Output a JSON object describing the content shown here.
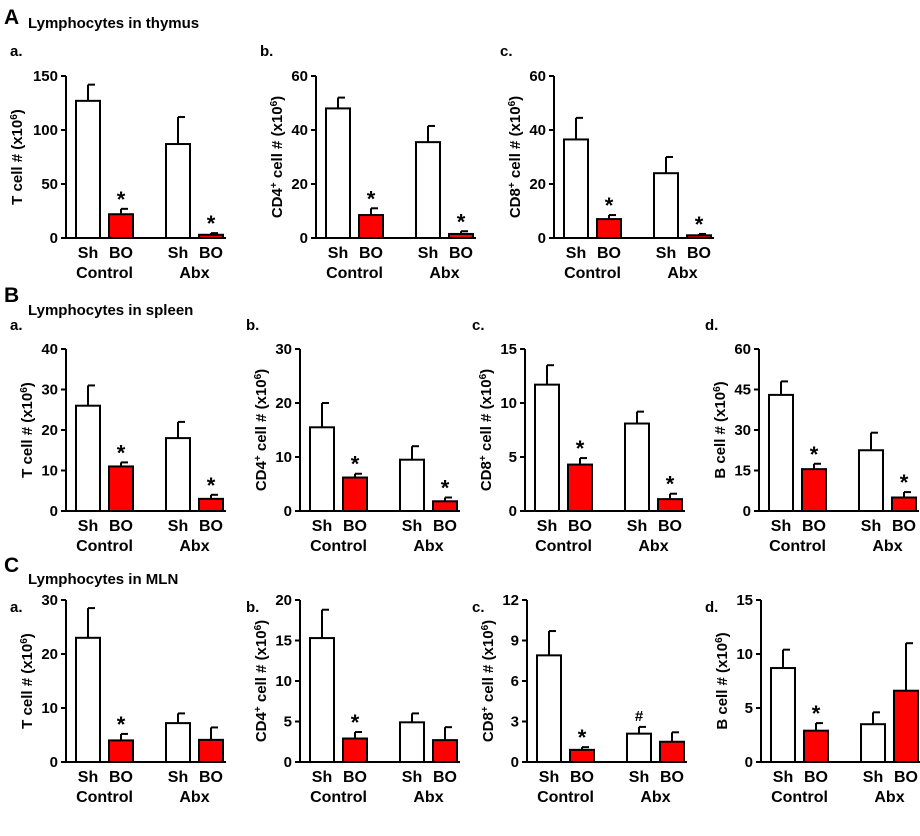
{
  "sections": [
    {
      "id": "A",
      "letter": "A",
      "title": "Lymphocytes in thymus"
    },
    {
      "id": "B",
      "letter": "B",
      "title": "Lymphocytes in spleen"
    },
    {
      "id": "C",
      "letter": "C",
      "title": "Lymphocytes in MLN"
    }
  ],
  "colors": {
    "sham": "#ffffff",
    "bo": "#ff0000",
    "stroke": "#000000"
  },
  "chart_data": [
    {
      "type": "bar",
      "section": "A",
      "panel": "a.",
      "ylabel": "T cell # (x10",
      "ylabel_sup": "6",
      "ylabel_end": ")",
      "yticks": [
        0,
        50,
        100,
        150
      ],
      "ylim": [
        0,
        150
      ],
      "categories": [
        "Sh",
        "BO",
        "Sh",
        "BO"
      ],
      "groups": [
        "Control",
        "Abx"
      ],
      "values": [
        127,
        22,
        87,
        3
      ],
      "errors": [
        15,
        5,
        25,
        1.5
      ],
      "marks": [
        "",
        "*",
        "",
        "*"
      ]
    },
    {
      "type": "bar",
      "section": "A",
      "panel": "b.",
      "ylabel": "CD4",
      "ylabel_sup2": "+",
      "ylabel_mid": " cell # (x10",
      "ylabel_sup": "6",
      "ylabel_end": ")",
      "yticks": [
        0,
        20,
        40,
        60
      ],
      "ylim": [
        0,
        60
      ],
      "categories": [
        "Sh",
        "BO",
        "Sh",
        "BO"
      ],
      "groups": [
        "Control",
        "Abx"
      ],
      "values": [
        48,
        8.5,
        35.5,
        1.5
      ],
      "errors": [
        4,
        2.5,
        6,
        1
      ],
      "marks": [
        "",
        "*",
        "",
        "*"
      ]
    },
    {
      "type": "bar",
      "section": "A",
      "panel": "c.",
      "ylabel": "CD8",
      "ylabel_sup2": "+",
      "ylabel_mid": " cell # (x10",
      "ylabel_sup": "6",
      "ylabel_end": ")",
      "yticks": [
        0,
        20,
        40,
        60
      ],
      "ylim": [
        0,
        60
      ],
      "categories": [
        "Sh",
        "BO",
        "Sh",
        "BO"
      ],
      "groups": [
        "Control",
        "Abx"
      ],
      "values": [
        36.5,
        7,
        24,
        1
      ],
      "errors": [
        8,
        1.5,
        6,
        0.5
      ],
      "marks": [
        "",
        "*",
        "",
        "*"
      ]
    },
    {
      "type": "bar",
      "section": "B",
      "panel": "a.",
      "ylabel": "T cell # (x10",
      "ylabel_sup": "6",
      "ylabel_end": ")",
      "yticks": [
        0,
        10,
        20,
        30,
        40
      ],
      "ylim": [
        0,
        40
      ],
      "categories": [
        "Sh",
        "BO",
        "Sh",
        "BO"
      ],
      "groups": [
        "Control",
        "Abx"
      ],
      "values": [
        26,
        11,
        18,
        3
      ],
      "errors": [
        5,
        1,
        4,
        1
      ],
      "marks": [
        "",
        "*",
        "",
        "*"
      ]
    },
    {
      "type": "bar",
      "section": "B",
      "panel": "b.",
      "ylabel": "CD4",
      "ylabel_sup2": "+",
      "ylabel_mid": " cell # (x10",
      "ylabel_sup": "6",
      "ylabel_end": ")",
      "yticks": [
        0,
        10,
        20,
        30
      ],
      "ylim": [
        0,
        30
      ],
      "categories": [
        "Sh",
        "BO",
        "Sh",
        "BO"
      ],
      "groups": [
        "Control",
        "Abx"
      ],
      "values": [
        15.5,
        6.2,
        9.5,
        1.8
      ],
      "errors": [
        4.5,
        0.7,
        2.5,
        0.7
      ],
      "marks": [
        "",
        "*",
        "",
        "*"
      ]
    },
    {
      "type": "bar",
      "section": "B",
      "panel": "c.",
      "ylabel": "CD8",
      "ylabel_sup2": "+",
      "ylabel_mid": " cell # (x10",
      "ylabel_sup": "6",
      "ylabel_end": ")",
      "yticks": [
        0,
        5,
        10,
        15
      ],
      "ylim": [
        0,
        15
      ],
      "categories": [
        "Sh",
        "BO",
        "Sh",
        "BO"
      ],
      "groups": [
        "Control",
        "Abx"
      ],
      "values": [
        11.7,
        4.3,
        8.1,
        1.1
      ],
      "errors": [
        1.8,
        0.6,
        1.1,
        0.5
      ],
      "marks": [
        "",
        "*",
        "",
        "*"
      ]
    },
    {
      "type": "bar",
      "section": "B",
      "panel": "d.",
      "ylabel": "B cell # (x10",
      "ylabel_sup": "6",
      "ylabel_end": ")",
      "yticks": [
        0,
        15,
        30,
        45,
        60
      ],
      "ylim": [
        0,
        60
      ],
      "categories": [
        "Sh",
        "BO",
        "Sh",
        "BO"
      ],
      "groups": [
        "Control",
        "Abx"
      ],
      "values": [
        43,
        15.5,
        22.5,
        5
      ],
      "errors": [
        5,
        2,
        6.5,
        2
      ],
      "marks": [
        "",
        "*",
        "",
        "*"
      ]
    },
    {
      "type": "bar",
      "section": "C",
      "panel": "a.",
      "ylabel": "T cell # (x10",
      "ylabel_sup": "6",
      "ylabel_end": ")",
      "yticks": [
        0,
        10,
        20,
        30
      ],
      "ylim": [
        0,
        30
      ],
      "categories": [
        "Sh",
        "BO",
        "Sh",
        "BO"
      ],
      "groups": [
        "Control",
        "Abx"
      ],
      "values": [
        23,
        4,
        7.2,
        4.1
      ],
      "errors": [
        5.5,
        1.2,
        1.8,
        2.3
      ],
      "marks": [
        "",
        "*",
        "",
        ""
      ]
    },
    {
      "type": "bar",
      "section": "C",
      "panel": "b.",
      "ylabel": "CD4",
      "ylabel_sup2": "+",
      "ylabel_mid": " cell # (x10",
      "ylabel_sup": "6",
      "ylabel_end": ")",
      "yticks": [
        0,
        5,
        10,
        15,
        20
      ],
      "ylim": [
        0,
        20
      ],
      "categories": [
        "Sh",
        "BO",
        "Sh",
        "BO"
      ],
      "groups": [
        "Control",
        "Abx"
      ],
      "values": [
        15.3,
        2.9,
        4.9,
        2.7
      ],
      "errors": [
        3.5,
        0.8,
        1.1,
        1.6
      ],
      "marks": [
        "",
        "*",
        "",
        ""
      ]
    },
    {
      "type": "bar",
      "section": "C",
      "panel": "c.",
      "ylabel": "CD8",
      "ylabel_sup2": "+",
      "ylabel_mid": " cell # (x10",
      "ylabel_sup": "6",
      "ylabel_end": ")",
      "yticks": [
        0,
        3,
        6,
        9,
        12
      ],
      "ylim": [
        0,
        12
      ],
      "categories": [
        "Sh",
        "BO",
        "Sh",
        "BO"
      ],
      "groups": [
        "Control",
        "Abx"
      ],
      "values": [
        7.9,
        0.9,
        2.1,
        1.5
      ],
      "errors": [
        1.8,
        0.2,
        0.5,
        0.7
      ],
      "marks": [
        "",
        "*",
        "#",
        ""
      ]
    },
    {
      "type": "bar",
      "section": "C",
      "panel": "d.",
      "ylabel": "B cell # (x10",
      "ylabel_sup": "6",
      "ylabel_end": ")",
      "yticks": [
        0,
        5,
        10,
        15
      ],
      "ylim": [
        0,
        15
      ],
      "categories": [
        "Sh",
        "BO",
        "Sh",
        "BO"
      ],
      "groups": [
        "Control",
        "Abx"
      ],
      "values": [
        8.7,
        2.9,
        3.5,
        6.6
      ],
      "errors": [
        1.7,
        0.7,
        1.1,
        4.4
      ],
      "marks": [
        "",
        "*",
        "",
        ""
      ]
    }
  ]
}
